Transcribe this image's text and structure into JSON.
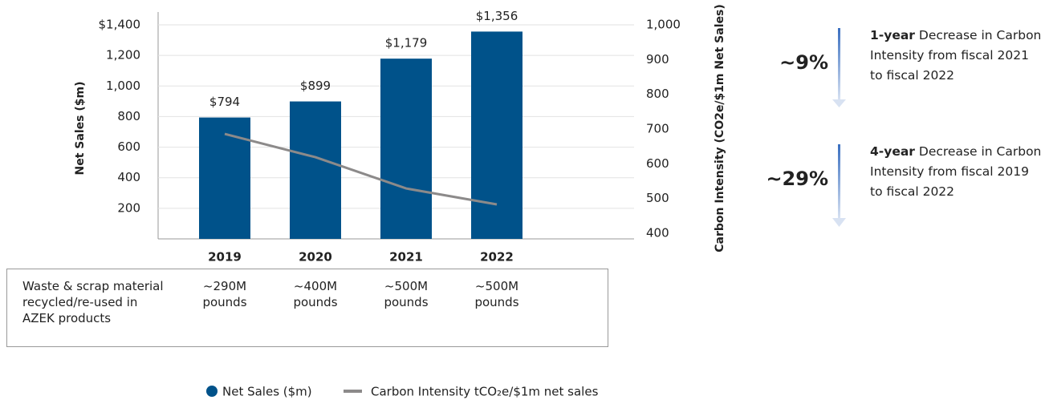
{
  "chart_data": {
    "type": "bar",
    "categories": [
      "2019",
      "2020",
      "2021",
      "2022"
    ],
    "series": [
      {
        "name": "Net Sales ($m)",
        "type": "bar",
        "color": "#00528a",
        "values": [
          794,
          899,
          1179,
          1356
        ],
        "value_labels": [
          "$794",
          "$899",
          "$1,179",
          "$1,356"
        ]
      },
      {
        "name": "Carbon Intensity tCO₂e/$1m net sales",
        "type": "line",
        "color": "#8c8a8a",
        "axis": "y2",
        "values": [
          686,
          619,
          529,
          483
        ]
      }
    ],
    "ylabel": "Net Sales ($m)",
    "y2label": "Carbon Intensity (CO2e/$1m Net Sales)",
    "ylim": [
      0,
      1400
    ],
    "yticks": [
      {
        "value": 200,
        "label": "200"
      },
      {
        "value": 400,
        "label": "400"
      },
      {
        "value": 600,
        "label": "600"
      },
      {
        "value": 800,
        "label": "800"
      },
      {
        "value": 1000,
        "label": "1,000"
      },
      {
        "value": 1200,
        "label": "1,200"
      },
      {
        "value": 1400,
        "label": "$1,400"
      }
    ],
    "y2lim": [
      400,
      1000
    ],
    "y2ticks": [
      400,
      500,
      600,
      700,
      800,
      900,
      {
        "value": 1000,
        "label": "1,000"
      }
    ],
    "grid": true,
    "table": {
      "row_label": "Waste & scrap material recycled/re-used in AZEK products",
      "cells": [
        "~290M pounds",
        "~400M pounds",
        "~500M pounds",
        "~500M pounds"
      ]
    },
    "annotations": [
      {
        "percent": "~9%",
        "lead": "1-year",
        "text": "Decrease in Carbon Intensity from fiscal 2021 to fiscal 2022"
      },
      {
        "percent": "~29%",
        "lead": "4-year",
        "text": "Decrease in Carbon Intensity from fiscal 2019 to fiscal 2022"
      }
    ]
  }
}
